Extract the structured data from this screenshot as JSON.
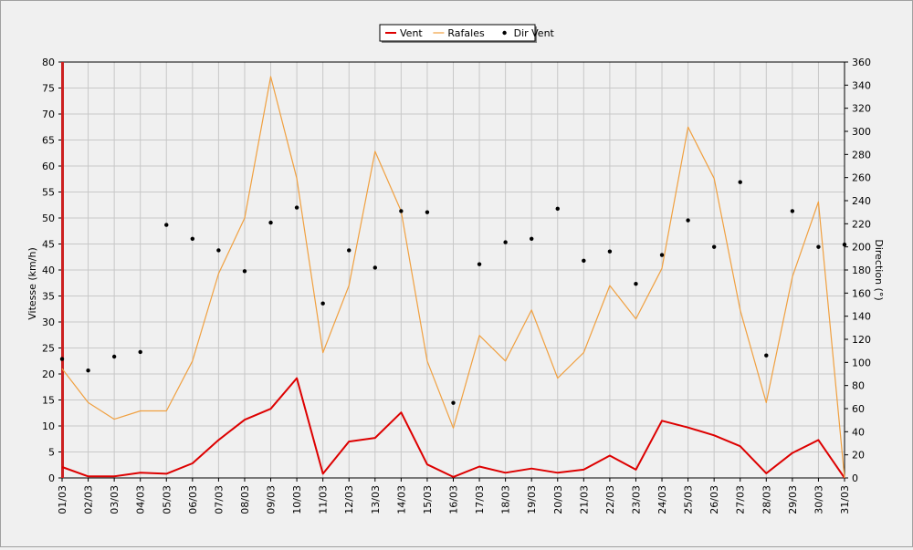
{
  "chart_data": {
    "type": "line",
    "categories": [
      "01/03",
      "02/03",
      "03/03",
      "04/03",
      "05/03",
      "06/03",
      "07/03",
      "08/03",
      "09/03",
      "10/03",
      "11/03",
      "12/03",
      "13/03",
      "14/03",
      "15/03",
      "16/03",
      "17/03",
      "18/03",
      "19/03",
      "20/03",
      "21/03",
      "22/03",
      "23/03",
      "24/03",
      "25/03",
      "26/03",
      "27/03",
      "28/03",
      "29/03",
      "30/03",
      "31/03"
    ],
    "series": [
      {
        "name": "Vent",
        "axis": "left",
        "style": "line",
        "color": "#dd0000",
        "values": [
          2.1,
          0.3,
          0.3,
          1.0,
          0.8,
          2.8,
          7.3,
          11.2,
          13.3,
          19.2,
          0.8,
          7.0,
          7.7,
          12.6,
          2.6,
          0.2,
          2.2,
          1.0,
          1.8,
          1.0,
          1.6,
          4.3,
          1.6,
          11.0,
          9.7,
          8.2,
          6.1,
          0.9,
          4.8,
          7.3,
          0.0
        ]
      },
      {
        "name": "Rafales",
        "axis": "left",
        "style": "line",
        "color": "#f0a040",
        "values": [
          21.0,
          14.5,
          11.3,
          12.9,
          12.9,
          22.5,
          39.3,
          50.0,
          77.2,
          57.6,
          24.1,
          37.0,
          62.8,
          51.3,
          22.5,
          9.6,
          27.4,
          22.5,
          32.3,
          19.2,
          24.1,
          37.0,
          30.6,
          40.3,
          67.5,
          57.6,
          32.3,
          14.5,
          38.7,
          53.1,
          0.0
        ]
      },
      {
        "name": "Dir Vent",
        "axis": "right",
        "style": "points",
        "color": "#000000",
        "values": [
          103,
          93,
          105,
          109,
          219,
          207,
          197,
          179,
          221,
          234,
          151,
          197,
          182,
          231,
          230,
          65,
          185,
          204,
          207,
          233,
          188,
          196,
          168,
          193,
          223,
          200,
          256,
          106,
          231,
          200,
          202
        ]
      }
    ],
    "ylabel_left": "Vitesse (km/h)",
    "ylabel_right": "Direction (°)",
    "ylim_left": [
      0,
      80
    ],
    "ylim_right": [
      0,
      360
    ],
    "yticks_left": [
      0,
      5,
      10,
      15,
      20,
      25,
      30,
      35,
      40,
      45,
      50,
      55,
      60,
      65,
      70,
      75,
      80
    ],
    "yticks_right": [
      0,
      20,
      40,
      60,
      80,
      100,
      120,
      140,
      160,
      180,
      200,
      220,
      240,
      260,
      280,
      300,
      320,
      340,
      360
    ],
    "grid": true,
    "legend_position": "top-center"
  }
}
